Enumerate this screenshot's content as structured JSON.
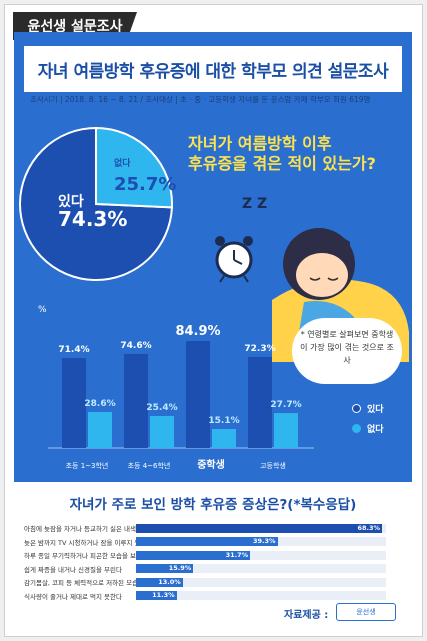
{
  "tag": "윤선생 설문조사",
  "title": "자녀 여름방학 후유증에 대한 학부모 의견 설문조사",
  "meta": {
    "period_label": "조사시기",
    "period": "2018. 8. 16 ~ 8. 21",
    "target_label": "조사대상",
    "target": "초 · 중 · 고등학생 자녀를 둔 윤스맘 카페 학부모 회원 619명"
  },
  "q1": {
    "line1": "자녀가 여름방학 이후",
    "line2": "후유증을 겪은 적이 있는가?"
  },
  "note": "* 연령별로 살펴보면 중학생이 가장 많이 겪는 것으로 조사",
  "illustration": {
    "sleep_text": "Z Z",
    "icon": "alarm-clock-icon"
  },
  "colors": {
    "yes": "#1c4fb0",
    "no": "#2fb6ee",
    "panel": "#2a6fd0",
    "highlight": "#ffe34d"
  },
  "chart_data": [
    {
      "type": "pie",
      "labels": [
        "있다",
        "없다"
      ],
      "values": [
        74.3,
        25.7
      ],
      "value_labels": [
        "74.3%",
        "25.7%"
      ]
    },
    {
      "type": "bar",
      "ylabel": "%",
      "categories": [
        "초등 1~3학년",
        "초등 4~6학년",
        "중학생",
        "고등학생"
      ],
      "series": [
        {
          "name": "있다",
          "values": [
            71.4,
            74.6,
            84.9,
            72.3
          ],
          "labels": [
            "71.4%",
            "74.6%",
            "84.9%",
            "72.3%"
          ]
        },
        {
          "name": "없다",
          "values": [
            28.6,
            25.4,
            15.1,
            27.7
          ],
          "labels": [
            "28.6%",
            "25.4%",
            "15.1%",
            "27.7%"
          ]
        }
      ],
      "ylim": [
        0,
        100
      ],
      "legend": "bottom-right"
    },
    {
      "type": "bar",
      "orientation": "horizontal",
      "title": "자녀가 주로 보인 방학 후유증 증상은?(*복수응답)",
      "categories": [
        "아침에 늦잠을 자거나 등교하기 싫은 내색을 한다",
        "늦은 밤까지 TV 시청하거나 잠을 이루지 못한다",
        "하루 종일 무기력하거나 피곤한 모습을 보인다",
        "쉽게 짜증을 내거나 신경질을 부린다",
        "감기몸살, 코피 등 체력적으로 저하된 모습을 보인다",
        "식사량이 줄거나 제대로 먹지 못한다"
      ],
      "values": [
        68.3,
        39.3,
        31.7,
        15.9,
        13.0,
        11.3
      ],
      "labels": [
        "68.3%",
        "39.3%",
        "31.7%",
        "15.9%",
        "13.0%",
        "11.3%"
      ]
    }
  ],
  "source": {
    "label": "자료제공 :",
    "logo": "윤선생"
  }
}
